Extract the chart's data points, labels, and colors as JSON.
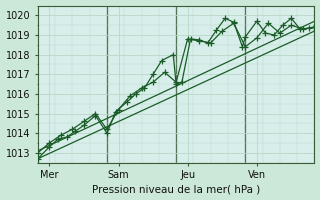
{
  "xlabel": "Pression niveau de la mer( hPa )",
  "bg_color": "#cce8d8",
  "plot_bg_color": "#d8eeea",
  "grid_color": "#b8d8c8",
  "line_color": "#1a5c28",
  "xlim": [
    0,
    96
  ],
  "ylim": [
    1012.5,
    1020.5
  ],
  "yticks": [
    1013,
    1014,
    1015,
    1016,
    1017,
    1018,
    1019,
    1020
  ],
  "day_ticks": [
    4,
    28,
    52,
    76
  ],
  "day_labels": [
    "Mer",
    "Sam",
    "Jeu",
    "Ven"
  ],
  "vline_positions": [
    24,
    48,
    72
  ],
  "line1_x": [
    0,
    4,
    7,
    10,
    13,
    16,
    20,
    24,
    27,
    31,
    34,
    37,
    40,
    43,
    47,
    48,
    50,
    53,
    56,
    59,
    62,
    65,
    68,
    71,
    72,
    76,
    79,
    82,
    85,
    88,
    91,
    94,
    96
  ],
  "line1_y": [
    1012.7,
    1013.3,
    1013.7,
    1013.8,
    1014.1,
    1014.4,
    1014.9,
    1014.0,
    1015.1,
    1015.6,
    1016.0,
    1016.3,
    1017.0,
    1017.7,
    1018.0,
    1016.5,
    1016.6,
    1018.8,
    1018.75,
    1018.6,
    1019.25,
    1019.85,
    1019.65,
    1018.4,
    1018.9,
    1019.7,
    1019.1,
    1019.0,
    1019.5,
    1019.85,
    1019.3,
    1019.35,
    1019.4
  ],
  "line2_x": [
    0,
    4,
    8,
    12,
    16,
    20,
    24,
    28,
    32,
    36,
    40,
    44,
    48,
    52,
    56,
    60,
    64,
    68,
    72,
    76,
    80,
    84,
    88,
    92,
    96
  ],
  "line2_y": [
    1013.0,
    1013.5,
    1013.9,
    1014.2,
    1014.6,
    1015.0,
    1014.2,
    1015.2,
    1015.9,
    1016.3,
    1016.6,
    1017.1,
    1016.6,
    1018.8,
    1018.7,
    1018.6,
    1019.2,
    1019.6,
    1018.4,
    1018.85,
    1019.6,
    1019.1,
    1019.5,
    1019.3,
    1019.4
  ],
  "line3_x": [
    0,
    96
  ],
  "line3_y": [
    1013.1,
    1019.7
  ],
  "line4_x": [
    0,
    96
  ],
  "line4_y": [
    1012.7,
    1019.2
  ],
  "line_width": 0.9,
  "marker_size": 4
}
